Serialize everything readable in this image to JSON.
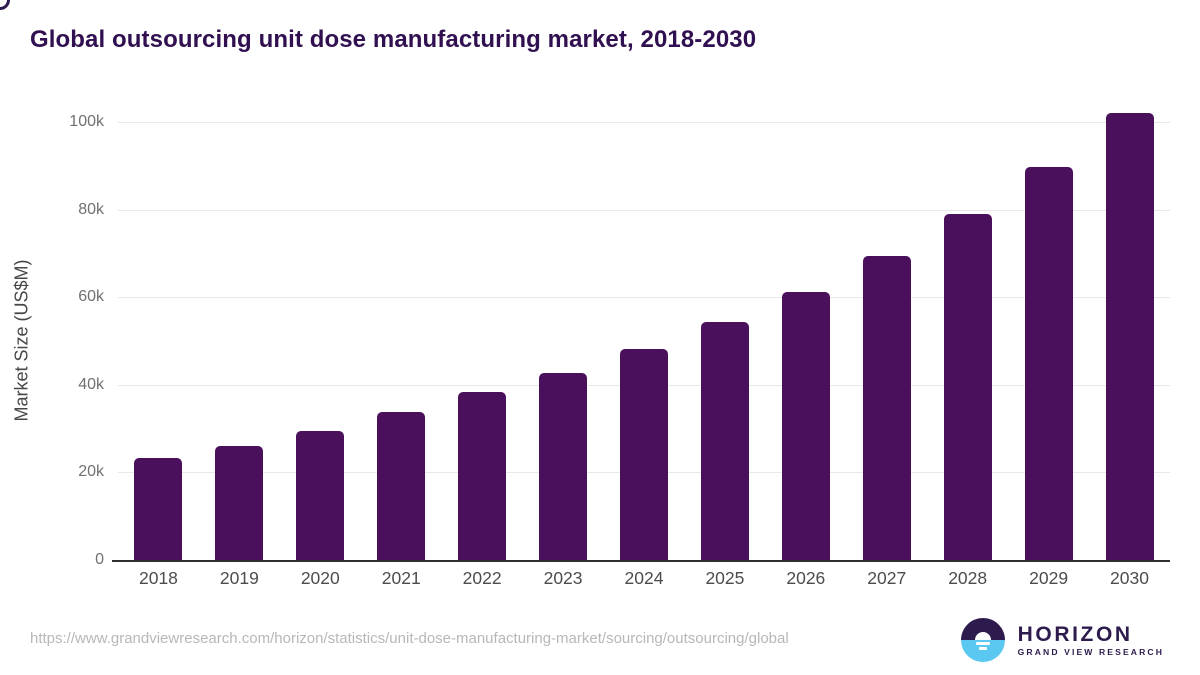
{
  "title": "Global outsourcing unit dose manufacturing market, 2018-2030",
  "chart_data": {
    "type": "bar",
    "title": "Global outsourcing unit dose manufacturing market, 2018-2030",
    "categories": [
      "2018",
      "2019",
      "2020",
      "2021",
      "2022",
      "2023",
      "2024",
      "2025",
      "2026",
      "2027",
      "2028",
      "2029",
      "2030"
    ],
    "values": [
      23300,
      26000,
      29500,
      33800,
      38300,
      42800,
      48100,
      54300,
      61300,
      69500,
      78900,
      89800,
      102100
    ],
    "xlabel": "",
    "ylabel": "Market Size (US$M)",
    "ylim": [
      0,
      104000
    ],
    "yaxis_scale_max": 100000,
    "yticks": [
      {
        "value": 0,
        "label": "0"
      },
      {
        "value": 20000,
        "label": "20k"
      },
      {
        "value": 40000,
        "label": "40k"
      },
      {
        "value": 60000,
        "label": "60k"
      },
      {
        "value": 80000,
        "label": "80k"
      },
      {
        "value": 100000,
        "label": "100k"
      }
    ],
    "grid": "horizontal",
    "legend": "none",
    "bar_color": "#4a105c"
  },
  "footer": {
    "source_url": "https://www.grandviewresearch.com/horizon/statistics/unit-dose-manufacturing-market/sourcing/outsourcing/global",
    "logo": {
      "brand": "HORIZON",
      "sub_brand": "GRAND VIEW RESEARCH",
      "purple": "#2d1b4e",
      "blue": "#5ac8f0"
    }
  },
  "colors": {
    "title_text": "#301050",
    "bar_fill": "#4a105c",
    "gridline": "#e9e9e9",
    "axis_line": "#303030",
    "y_tick_text": "#707070",
    "x_tick_text": "#4c4c4c",
    "url_text": "#b7b7b7"
  }
}
